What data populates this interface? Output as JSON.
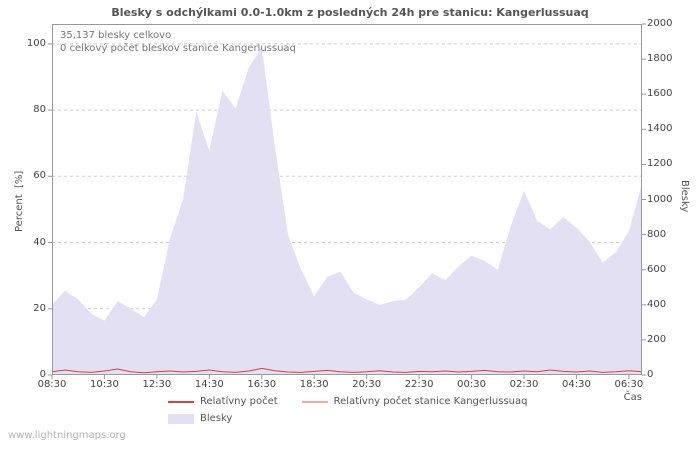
{
  "chart_data": {
    "type": "area",
    "title": "Blesky s odchýlkami 0.0-1.0km z posledných 24h pre stanicu: Kangerlussuaq",
    "x_axis_label": "Čas",
    "x_labels": [
      "08:30",
      "10:30",
      "12:30",
      "14:30",
      "16:30",
      "18:30",
      "20:30",
      "22:30",
      "00:30",
      "02:30",
      "04:30",
      "06:30"
    ],
    "x": [
      "08:30",
      "09:00",
      "09:30",
      "10:00",
      "10:30",
      "11:00",
      "11:30",
      "12:00",
      "12:30",
      "13:00",
      "13:30",
      "14:00",
      "14:30",
      "15:00",
      "15:30",
      "16:00",
      "16:30",
      "17:00",
      "17:30",
      "18:00",
      "18:30",
      "19:00",
      "19:30",
      "20:00",
      "20:30",
      "21:00",
      "21:30",
      "22:00",
      "22:30",
      "23:00",
      "23:30",
      "00:00",
      "00:30",
      "01:00",
      "01:30",
      "02:00",
      "02:30",
      "03:00",
      "03:30",
      "04:00",
      "04:30",
      "05:00",
      "05:30",
      "06:00",
      "06:30",
      "07:00"
    ],
    "left_axis": {
      "label": "Percent  [%]",
      "range": [
        0,
        106
      ],
      "ticks": [
        0,
        20,
        40,
        60,
        80,
        100
      ]
    },
    "right_axis": {
      "label": "Blesky",
      "range": [
        0,
        2000
      ],
      "ticks": [
        0,
        200,
        400,
        600,
        800,
        1000,
        1200,
        1400,
        1600,
        1800,
        2000
      ]
    },
    "series": [
      {
        "name": "Blesky",
        "type": "area",
        "axis": "right",
        "values": [
          400,
          480,
          430,
          350,
          310,
          420,
          380,
          330,
          430,
          780,
          1000,
          1500,
          1280,
          1620,
          1520,
          1750,
          1870,
          1300,
          800,
          600,
          450,
          560,
          590,
          470,
          430,
          400,
          420,
          430,
          500,
          580,
          540,
          620,
          680,
          650,
          600,
          850,
          1050,
          880,
          830,
          900,
          840,
          760,
          640,
          700,
          820,
          1090
        ]
      },
      {
        "name": "Relatívny počet",
        "type": "line",
        "axis": "left",
        "values": [
          1.0,
          1.5,
          1.0,
          0.8,
          1.2,
          1.8,
          1.0,
          0.7,
          1.0,
          1.2,
          0.9,
          1.1,
          1.5,
          1.0,
          0.8,
          1.2,
          2.0,
          1.3,
          0.9,
          0.8,
          1.1,
          1.4,
          1.0,
          0.8,
          1.0,
          1.3,
          0.9,
          0.8,
          1.1,
          1.0,
          1.2,
          0.9,
          1.1,
          1.4,
          1.0,
          0.9,
          1.2,
          1.0,
          1.5,
          1.1,
          0.9,
          1.2,
          0.8,
          1.0,
          1.3,
          1.0
        ]
      },
      {
        "name": "Relatívny počet stanice Kangerlussuaq",
        "type": "line",
        "axis": "left",
        "values": [
          0,
          0,
          0,
          0,
          0,
          0,
          0,
          0,
          0,
          0,
          0,
          0,
          0,
          0,
          0,
          0,
          0,
          0,
          0,
          0,
          0,
          0,
          0,
          0,
          0,
          0,
          0,
          0,
          0,
          0,
          0,
          0,
          0,
          0,
          0,
          0,
          0,
          0,
          0,
          0,
          0,
          0,
          0,
          0,
          0,
          0
        ]
      }
    ],
    "annotations": {
      "total": "35,137 blesky celkovo",
      "station": "0 celkový počet bleskov stanice Kangerlussuaq"
    }
  },
  "legend": {
    "items": [
      {
        "label": "Relatívny počet",
        "type": "line"
      },
      {
        "label": "Relatívny počet stanice Kangerlussuaq",
        "type": "line"
      },
      {
        "label": "Blesky",
        "type": "area"
      }
    ]
  },
  "colors": {
    "line_relative": "#cc4444",
    "line_station": "#eeaaaa",
    "area": "#e4e0f4",
    "grid": "#cccccc",
    "border": "#999999"
  },
  "watermark": "www.lightningmaps.org"
}
